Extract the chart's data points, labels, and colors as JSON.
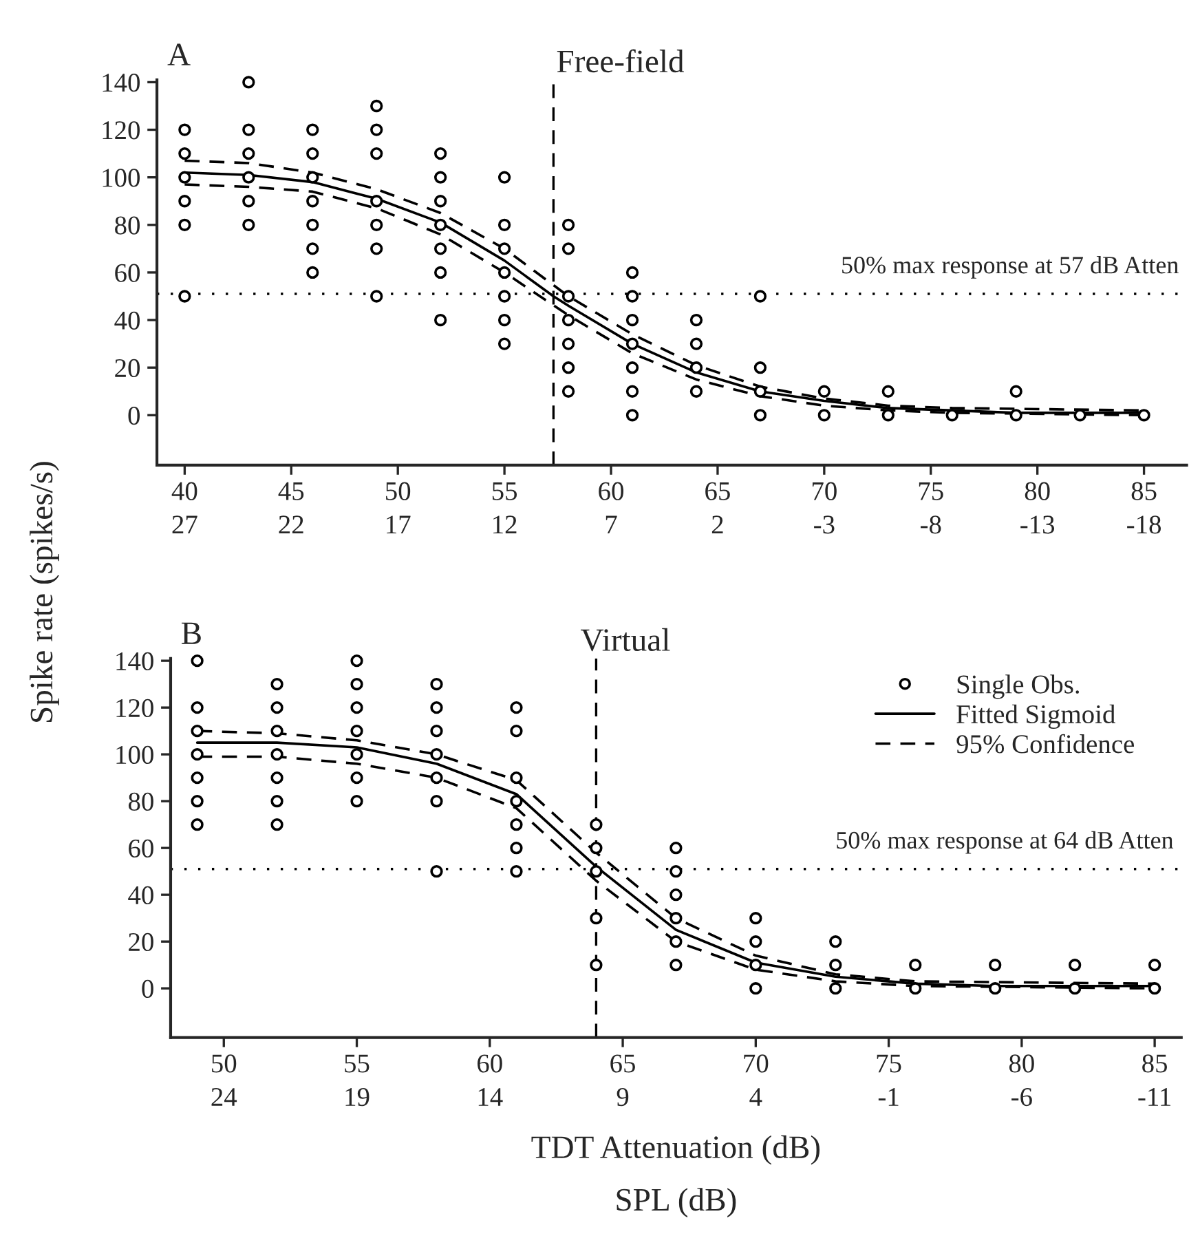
{
  "chart_data": [
    {
      "type": "scatter",
      "title": "Free-field",
      "ylabel": "Spike rate (spikes/s)",
      "annotations": [
        "A"
      ],
      "xlim": [
        38.7,
        87
      ],
      "ylim": [
        -21,
        141
      ],
      "xticks": [
        40,
        45,
        50,
        55,
        60,
        65,
        70,
        75,
        80,
        85
      ],
      "x2lim": [
        28.3,
        -20
      ],
      "x2ticks": [
        27,
        22,
        17,
        12,
        7,
        2,
        -3,
        -8,
        -13,
        -18
      ],
      "yticks": [
        0,
        20,
        40,
        60,
        80,
        100,
        120,
        140
      ],
      "grid": false,
      "legend": false,
      "ref_lines": [
        {
          "axis": "y",
          "value": 51,
          "label": "50% max response at 57 dB Atten",
          "line_style": "dotted",
          "color": "#000000"
        },
        {
          "axis": "x",
          "value": 57.3,
          "line_style": "dashed",
          "color": "#000000"
        }
      ],
      "series": [
        {
          "color": "#000000",
          "marker": "circle",
          "x": [
            40,
            40,
            40,
            40,
            40,
            40,
            43,
            43,
            43,
            43,
            43,
            43,
            46,
            46,
            46,
            46,
            46,
            46,
            46,
            49,
            49,
            49,
            49,
            49,
            49,
            49,
            52,
            52,
            52,
            52,
            52,
            52,
            52,
            55,
            55,
            55,
            55,
            55,
            55,
            55,
            58,
            58,
            58,
            58,
            58,
            58,
            58,
            61,
            61,
            61,
            61,
            61,
            61,
            61,
            64,
            64,
            64,
            64,
            67,
            67,
            67,
            67,
            70,
            70,
            73,
            73,
            76,
            79,
            79,
            82,
            85
          ],
          "values": [
            120,
            110,
            100,
            90,
            80,
            50,
            140,
            120,
            110,
            100,
            90,
            80,
            120,
            110,
            100,
            90,
            80,
            70,
            60,
            130,
            120,
            110,
            90,
            80,
            70,
            50,
            110,
            100,
            90,
            80,
            70,
            60,
            40,
            100,
            80,
            70,
            60,
            50,
            40,
            30,
            80,
            70,
            50,
            40,
            30,
            20,
            10,
            60,
            50,
            40,
            30,
            20,
            10,
            0,
            40,
            30,
            20,
            10,
            50,
            20,
            10,
            0,
            10,
            0,
            10,
            0,
            0,
            10,
            0,
            0,
            0
          ]
        },
        {
          "type": "line",
          "color": "#000000",
          "line_style": "solid",
          "marker": "none",
          "x": [
            40,
            43,
            46,
            49,
            52,
            55,
            57.3,
            58,
            61,
            64,
            67,
            70,
            73,
            76,
            79,
            85
          ],
          "values": [
            102,
            101,
            98,
            91,
            81,
            65,
            50,
            46,
            30,
            18,
            10,
            6,
            3,
            2,
            1,
            1
          ]
        },
        {
          "type": "line",
          "color": "#000000",
          "line_style": "dashed",
          "marker": "none",
          "x": [
            40,
            43,
            46,
            49,
            52,
            55,
            58,
            61,
            64,
            67,
            70,
            73,
            76,
            85
          ],
          "values": [
            107,
            106,
            102,
            95,
            85,
            70,
            50,
            34,
            21,
            12,
            7,
            4,
            3,
            2
          ]
        },
        {
          "type": "line",
          "color": "#000000",
          "line_style": "dashed",
          "marker": "none",
          "x": [
            40,
            43,
            46,
            49,
            52,
            55,
            58,
            61,
            64,
            67,
            70,
            73,
            76,
            85
          ],
          "values": [
            97,
            96,
            94,
            87,
            76,
            60,
            42,
            26,
            15,
            8,
            4,
            2,
            1,
            0
          ]
        }
      ]
    },
    {
      "type": "scatter",
      "title": "Virtual",
      "xlabel": "TDT Attenuation (dB)",
      "x2label": "SPL (dB)",
      "annotations": [
        "B"
      ],
      "xlim": [
        48,
        86
      ],
      "ylim": [
        -21,
        141
      ],
      "xticks": [
        50,
        55,
        60,
        65,
        70,
        75,
        80,
        85
      ],
      "x2lim": [
        26,
        -12
      ],
      "x2ticks": [
        24,
        19,
        14,
        9,
        4,
        -1,
        -6,
        -11
      ],
      "yticks": [
        0,
        20,
        40,
        60,
        80,
        100,
        120,
        140
      ],
      "grid": false,
      "legend": "top right",
      "ref_lines": [
        {
          "axis": "y",
          "value": 51,
          "label": "50% max response at 64 dB Atten",
          "line_style": "dotted",
          "color": "#000000"
        },
        {
          "axis": "x",
          "value": 64,
          "line_style": "dashed",
          "color": "#000000"
        }
      ],
      "series": [
        {
          "name": "Single Obs.",
          "color": "#000000",
          "marker": "circle",
          "x": [
            49,
            49,
            49,
            49,
            49,
            49,
            49,
            52,
            52,
            52,
            52,
            52,
            52,
            52,
            55,
            55,
            55,
            55,
            55,
            55,
            55,
            58,
            58,
            58,
            58,
            58,
            58,
            58,
            61,
            61,
            61,
            61,
            61,
            61,
            61,
            64,
            64,
            64,
            64,
            64,
            67,
            67,
            67,
            67,
            67,
            67,
            70,
            70,
            70,
            70,
            73,
            73,
            73,
            76,
            76,
            79,
            79,
            82,
            82,
            85,
            85
          ],
          "values": [
            140,
            120,
            110,
            100,
            90,
            80,
            70,
            130,
            120,
            110,
            100,
            90,
            80,
            70,
            140,
            130,
            120,
            110,
            100,
            90,
            80,
            130,
            120,
            110,
            100,
            90,
            80,
            50,
            120,
            110,
            90,
            80,
            70,
            60,
            50,
            70,
            60,
            50,
            30,
            10,
            60,
            50,
            40,
            30,
            20,
            10,
            30,
            20,
            10,
            0,
            20,
            10,
            0,
            10,
            0,
            10,
            0,
            10,
            0,
            10,
            0
          ]
        },
        {
          "type": "line",
          "name": "Fitted Sigmoid",
          "color": "#000000",
          "line_style": "solid",
          "marker": "none",
          "x": [
            49,
            52,
            55,
            58,
            61,
            64,
            67,
            70,
            73,
            76,
            79,
            85
          ],
          "values": [
            105,
            105,
            103,
            96,
            83,
            52,
            25,
            11,
            5,
            2,
            1,
            1
          ]
        },
        {
          "type": "line",
          "name": "95% Confidence",
          "color": "#000000",
          "line_style": "dashed",
          "marker": "none",
          "x": [
            49,
            52,
            55,
            58,
            61,
            64,
            67,
            70,
            73,
            76,
            85
          ],
          "values": [
            110,
            109,
            106,
            100,
            89,
            58,
            30,
            14,
            6,
            3,
            2
          ]
        },
        {
          "type": "line",
          "color": "#000000",
          "line_style": "dashed",
          "marker": "none",
          "x": [
            49,
            52,
            55,
            58,
            61,
            64,
            67,
            70,
            73,
            76,
            85
          ],
          "values": [
            99,
            99,
            96,
            90,
            77,
            46,
            20,
            8,
            3,
            1,
            0
          ]
        }
      ]
    }
  ]
}
